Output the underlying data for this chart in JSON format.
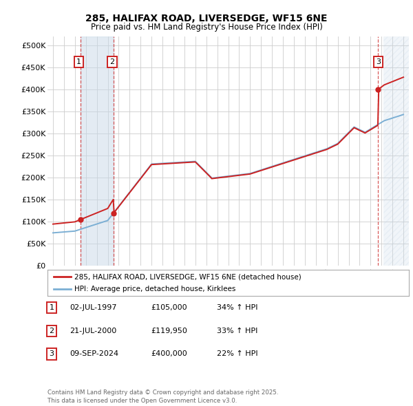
{
  "title1": "285, HALIFAX ROAD, LIVERSEDGE, WF15 6NE",
  "title2": "Price paid vs. HM Land Registry's House Price Index (HPI)",
  "ylabel_ticks": [
    "£0",
    "£50K",
    "£100K",
    "£150K",
    "£200K",
    "£250K",
    "£300K",
    "£350K",
    "£400K",
    "£450K",
    "£500K"
  ],
  "ytick_values": [
    0,
    50000,
    100000,
    150000,
    200000,
    250000,
    300000,
    350000,
    400000,
    450000,
    500000
  ],
  "xlim": [
    1994.5,
    2027.5
  ],
  "ylim": [
    0,
    520000
  ],
  "sale_dates": [
    1997.5,
    2000.55,
    2024.69
  ],
  "sale_prices": [
    105000,
    119950,
    400000
  ],
  "sale_labels": [
    "1",
    "2",
    "3"
  ],
  "legend_line1": "285, HALIFAX ROAD, LIVERSEDGE, WF15 6NE (detached house)",
  "legend_line2": "HPI: Average price, detached house, Kirklees",
  "table_rows": [
    [
      "1",
      "02-JUL-1997",
      "£105,000",
      "34% ↑ HPI"
    ],
    [
      "2",
      "21-JUL-2000",
      "£119,950",
      "33% ↑ HPI"
    ],
    [
      "3",
      "09-SEP-2024",
      "£400,000",
      "22% ↑ HPI"
    ]
  ],
  "footnote": "Contains HM Land Registry data © Crown copyright and database right 2025.\nThis data is licensed under the Open Government Licence v3.0.",
  "hpi_color": "#7bafd4",
  "sale_color": "#cc2222",
  "box_color": "#cc2222",
  "shade_color": "#c8d8e8",
  "future_hatch_color": "#c8d8e8",
  "background_color": "#ffffff",
  "grid_color": "#cccccc",
  "future_start": 2025.17
}
